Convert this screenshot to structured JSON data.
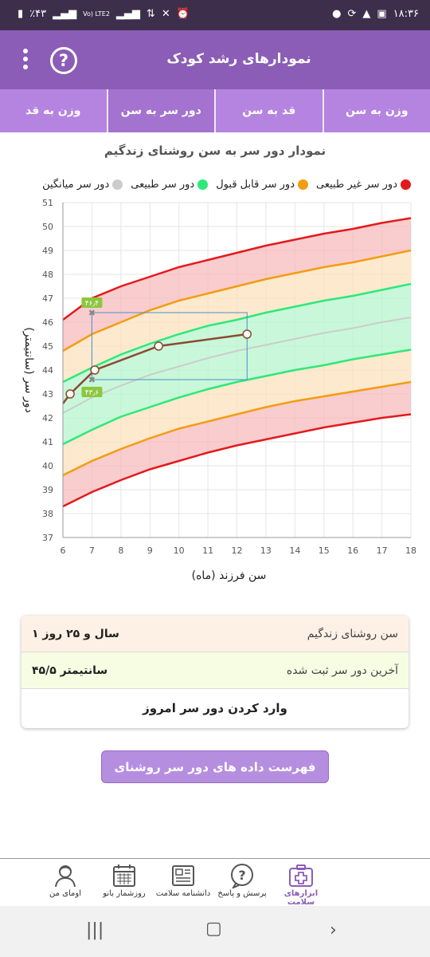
{
  "status_bar": {
    "time": "۱۸:۳۶",
    "battery": "٪۴۳",
    "network": "Vo) LTE2"
  },
  "app_bar": {
    "title": "نمودارهای رشد کودک",
    "help_label": "?"
  },
  "tabs": [
    {
      "label": "وزن به سن",
      "active": false
    },
    {
      "label": "قد به سن",
      "active": false
    },
    {
      "label": "دور سر به سن",
      "active": true
    },
    {
      "label": "وزن به قد",
      "active": false
    }
  ],
  "chart_title": "نمودار دور سر به سن روشنای زندگیم",
  "legend": [
    {
      "label": "دور سر غیر طبیعی",
      "color": "#e31a1c"
    },
    {
      "label": "دور سر قابل قبول",
      "color": "#f29d12"
    },
    {
      "label": "دور سر طبیعی",
      "color": "#2ee87a"
    },
    {
      "label": "دور سر میانگین",
      "color": "#cccccc"
    }
  ],
  "chart_data": {
    "type": "line",
    "xlabel": "سن فرزند (ماه)",
    "ylabel": "دور سر (سانتیمتر)",
    "xlim": [
      6,
      18
    ],
    "ylim": [
      37,
      51
    ],
    "x_ticks": [
      6,
      7,
      8,
      9,
      10,
      11,
      12,
      13,
      14,
      15,
      16,
      17,
      18
    ],
    "y_ticks": [
      37,
      38,
      39,
      40,
      41,
      42,
      43,
      44,
      45,
      46,
      47,
      48,
      49,
      50,
      51
    ],
    "grid": true,
    "x": [
      6,
      7,
      8,
      9,
      10,
      11,
      12,
      13,
      14,
      15,
      16,
      17,
      18
    ],
    "series": [
      {
        "name": "",
        "role": "abnormal-high",
        "color": "#e31a1c",
        "values": [
          46.1,
          47.0,
          47.5,
          47.9,
          48.3,
          48.6,
          48.9,
          49.2,
          49.45,
          49.7,
          49.9,
          50.15,
          50.35
        ]
      },
      {
        "name": "",
        "role": "acceptable-high",
        "color": "#f29d12",
        "values": [
          44.8,
          45.5,
          46.0,
          46.5,
          46.9,
          47.2,
          47.5,
          47.8,
          48.05,
          48.3,
          48.5,
          48.75,
          49.0
        ]
      },
      {
        "name": "",
        "role": "normal-high",
        "color": "#2ee87a",
        "values": [
          43.5,
          44.1,
          44.65,
          45.1,
          45.5,
          45.85,
          46.1,
          46.4,
          46.65,
          46.9,
          47.1,
          47.35,
          47.6
        ]
      },
      {
        "name": "",
        "role": "mean",
        "color": "#cccccc",
        "values": [
          42.2,
          42.85,
          43.35,
          43.8,
          44.15,
          44.5,
          44.8,
          45.05,
          45.3,
          45.55,
          45.75,
          46.0,
          46.2
        ]
      },
      {
        "name": "",
        "role": "normal-low",
        "color": "#2ee87a",
        "values": [
          40.9,
          41.5,
          42.05,
          42.45,
          42.85,
          43.2,
          43.5,
          43.75,
          44.0,
          44.2,
          44.45,
          44.65,
          44.85
        ]
      },
      {
        "name": "",
        "role": "acceptable-low",
        "color": "#f29d12",
        "values": [
          39.6,
          40.2,
          40.7,
          41.15,
          41.55,
          41.85,
          42.15,
          42.45,
          42.7,
          42.9,
          43.1,
          43.3,
          43.5
        ]
      },
      {
        "name": "",
        "role": "abnormal-low",
        "color": "#e31a1c",
        "values": [
          38.3,
          38.9,
          39.4,
          39.85,
          40.2,
          40.55,
          40.85,
          41.1,
          41.35,
          41.6,
          41.8,
          42.0,
          42.15
        ]
      }
    ],
    "measurements": {
      "color": "#8c4a2f",
      "x": [
        6,
        6.25,
        7.1,
        9.3,
        12.35
      ],
      "y": [
        42.6,
        43.0,
        44.0,
        45.0,
        45.5
      ]
    },
    "annotations": [
      {
        "label": "۴۶٫۴",
        "x": 7.0,
        "y": 46.4,
        "color": "#8cc63f"
      },
      {
        "label": "۴۳٫۶",
        "x": 7.0,
        "y": 43.6,
        "color": "#8cc63f"
      }
    ],
    "highlight_box": {
      "x": [
        7.0,
        12.35
      ],
      "y": [
        43.6,
        46.4
      ],
      "color": "#4a90c8"
    }
  },
  "info_card": {
    "age_label": "سن روشنای زندگیم",
    "age_value": "۱ سال و ۲۵ روز",
    "last_label": "آخرین دور سر ثبت شده",
    "last_value": "۴۵/۵ سانتیمتر",
    "add_button": "وارد کردن دور سر امروز"
  },
  "list_button": "فهرست داده های دور سر روشنای زندگیم",
  "bottom_nav": [
    {
      "label": "ابزارهای سلامت",
      "icon": "medical-kit-icon",
      "active": true
    },
    {
      "label": "پرسش و پاسخ",
      "icon": "question-bubble-icon",
      "active": false
    },
    {
      "label": "دانشنامه سلامت",
      "icon": "newspaper-icon",
      "active": false
    },
    {
      "label": "روزشمار بانو",
      "icon": "calendar-icon",
      "active": false
    },
    {
      "label": "اومای من",
      "icon": "profile-icon",
      "active": false
    }
  ]
}
